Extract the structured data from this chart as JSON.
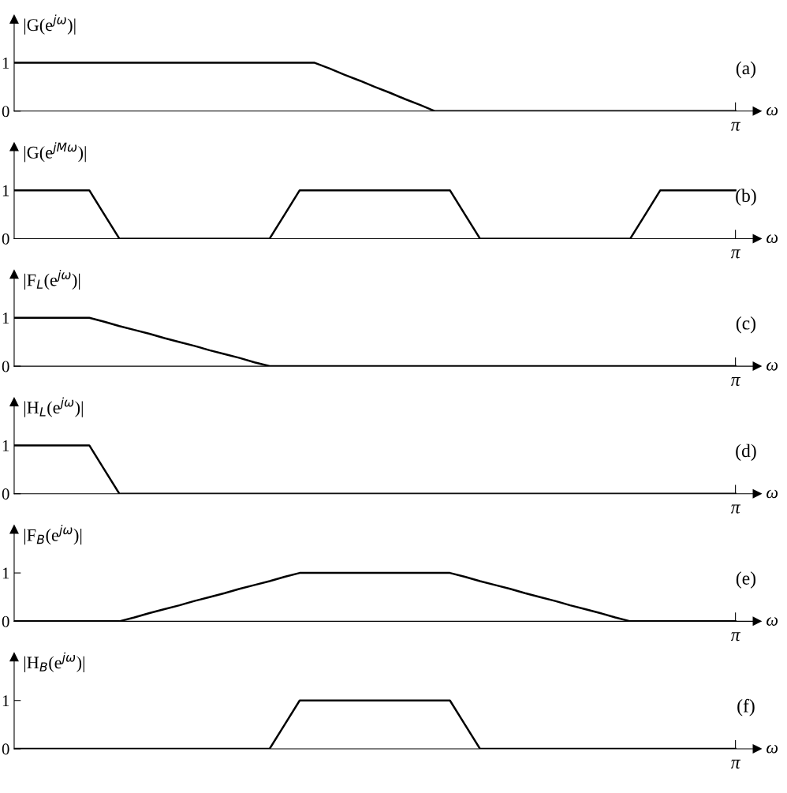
{
  "chart_data": [
    {
      "type": "line",
      "ylabel": "|G(e$^{jω}$)|",
      "xlabel": "ω",
      "annotations": [
        "(a)"
      ],
      "ylim": [
        0,
        1.9
      ],
      "yticks": [
        0,
        1
      ],
      "grid": false,
      "legend": false,
      "marker": "none",
      "line_style": "solid",
      "categories": [
        null,
        null,
        null,
        null,
        null,
        null,
        null,
        null,
        null,
        null,
        null,
        null,
        null,
        null,
        null,
        null,
        null,
        null,
        null,
        null,
        null,
        null,
        null,
        null,
        null,
        null,
        null,
        null,
        null,
        null,
        null,
        null,
        null,
        null,
        null,
        null,
        null,
        null,
        null,
        null,
        null,
        null,
        null,
        null,
        null,
        null,
        null,
        null,
        "π"
      ],
      "series": [
        {
          "color": "#000000",
          "values": [
            1,
            1,
            1,
            1,
            1,
            1,
            1,
            1,
            1,
            1,
            1,
            1,
            1,
            1,
            1,
            1,
            1,
            1,
            1,
            1,
            1,
            0.88,
            0.75,
            0.63,
            0.5,
            0.38,
            0.25,
            0.13,
            0,
            0,
            0,
            0,
            0,
            0,
            0,
            0,
            0,
            0,
            0,
            0,
            0,
            0,
            0,
            0,
            0,
            0,
            0,
            0,
            0
          ]
        }
      ]
    },
    {
      "type": "line",
      "ylabel": "|G(e$^{jMω}$)|",
      "xlabel": "ω",
      "annotations": [
        "(b)"
      ],
      "ylim": [
        0,
        1.9
      ],
      "yticks": [
        0,
        1
      ],
      "grid": false,
      "legend": false,
      "marker": "none",
      "line_style": "solid",
      "categories": [
        null,
        null,
        null,
        null,
        null,
        null,
        null,
        null,
        null,
        null,
        null,
        null,
        null,
        null,
        null,
        null,
        null,
        null,
        null,
        null,
        null,
        null,
        null,
        null,
        null,
        null,
        null,
        null,
        null,
        null,
        null,
        null,
        null,
        null,
        null,
        null,
        null,
        null,
        null,
        null,
        null,
        null,
        null,
        null,
        null,
        null,
        null,
        null,
        "π"
      ],
      "series": [
        {
          "color": "#000000",
          "values": [
            1,
            1,
            1,
            1,
            1,
            1,
            0.5,
            0,
            0,
            0,
            0,
            0,
            0,
            0,
            0,
            0,
            0,
            0,
            0.5,
            1,
            1,
            1,
            1,
            1,
            1,
            1,
            1,
            1,
            1,
            1,
            0.5,
            0,
            0,
            0,
            0,
            0,
            0,
            0,
            0,
            0,
            0,
            0,
            0.5,
            1,
            1,
            1,
            1,
            1,
            1
          ]
        }
      ]
    },
    {
      "type": "line",
      "ylabel": "|F$_{L}$(e$^{jω}$)|",
      "xlabel": "ω",
      "annotations": [
        "(c)"
      ],
      "ylim": [
        0,
        1.9
      ],
      "yticks": [
        0,
        1
      ],
      "grid": false,
      "legend": false,
      "marker": "none",
      "line_style": "solid",
      "categories": [
        null,
        null,
        null,
        null,
        null,
        null,
        null,
        null,
        null,
        null,
        null,
        null,
        null,
        null,
        null,
        null,
        null,
        null,
        null,
        null,
        null,
        null,
        null,
        null,
        null,
        null,
        null,
        null,
        null,
        null,
        null,
        null,
        null,
        null,
        null,
        null,
        null,
        null,
        null,
        null,
        null,
        null,
        null,
        null,
        null,
        null,
        null,
        null,
        "π"
      ],
      "series": [
        {
          "color": "#000000",
          "values": [
            1,
            1,
            1,
            1,
            1,
            1,
            0.92,
            0.83,
            0.75,
            0.67,
            0.58,
            0.5,
            0.42,
            0.33,
            0.25,
            0.17,
            0.08,
            0,
            0,
            0,
            0,
            0,
            0,
            0,
            0,
            0,
            0,
            0,
            0,
            0,
            0,
            0,
            0,
            0,
            0,
            0,
            0,
            0,
            0,
            0,
            0,
            0,
            0,
            0,
            0,
            0,
            0,
            0,
            0
          ]
        }
      ]
    },
    {
      "type": "line",
      "ylabel": "|H$_{L}$(e$^{jω}$)|",
      "xlabel": "ω",
      "annotations": [
        "(d)"
      ],
      "ylim": [
        0,
        1.9
      ],
      "yticks": [
        0,
        1
      ],
      "grid": false,
      "legend": false,
      "marker": "none",
      "line_style": "solid",
      "categories": [
        null,
        null,
        null,
        null,
        null,
        null,
        null,
        null,
        null,
        null,
        null,
        null,
        null,
        null,
        null,
        null,
        null,
        null,
        null,
        null,
        null,
        null,
        null,
        null,
        null,
        null,
        null,
        null,
        null,
        null,
        null,
        null,
        null,
        null,
        null,
        null,
        null,
        null,
        null,
        null,
        null,
        null,
        null,
        null,
        null,
        null,
        null,
        null,
        "π"
      ],
      "series": [
        {
          "color": "#000000",
          "values": [
            1,
            1,
            1,
            1,
            1,
            1,
            0.5,
            0,
            0,
            0,
            0,
            0,
            0,
            0,
            0,
            0,
            0,
            0,
            0,
            0,
            0,
            0,
            0,
            0,
            0,
            0,
            0,
            0,
            0,
            0,
            0,
            0,
            0,
            0,
            0,
            0,
            0,
            0,
            0,
            0,
            0,
            0,
            0,
            0,
            0,
            0,
            0,
            0,
            0
          ]
        }
      ]
    },
    {
      "type": "line",
      "ylabel": "|F$_{B}$(e$^{jω}$)|",
      "xlabel": "ω",
      "annotations": [
        "(e)"
      ],
      "ylim": [
        0,
        1.9
      ],
      "yticks": [
        0,
        1
      ],
      "grid": false,
      "legend": false,
      "marker": "none",
      "line_style": "solid",
      "categories": [
        null,
        null,
        null,
        null,
        null,
        null,
        null,
        null,
        null,
        null,
        null,
        null,
        null,
        null,
        null,
        null,
        null,
        null,
        null,
        null,
        null,
        null,
        null,
        null,
        null,
        null,
        null,
        null,
        null,
        null,
        null,
        null,
        null,
        null,
        null,
        null,
        null,
        null,
        null,
        null,
        null,
        null,
        null,
        null,
        null,
        null,
        null,
        null,
        "π"
      ],
      "series": [
        {
          "color": "#000000",
          "values": [
            0,
            0,
            0,
            0,
            0,
            0,
            0,
            0,
            0.08,
            0.17,
            0.25,
            0.33,
            0.42,
            0.5,
            0.58,
            0.67,
            0.75,
            0.83,
            0.92,
            1,
            1,
            1,
            1,
            1,
            1,
            1,
            1,
            1,
            1,
            1,
            0.92,
            0.83,
            0.75,
            0.67,
            0.58,
            0.5,
            0.42,
            0.33,
            0.25,
            0.17,
            0.08,
            0,
            0,
            0,
            0,
            0,
            0,
            0,
            0
          ]
        }
      ]
    },
    {
      "type": "line",
      "ylabel": "|H$_{B}$(e$^{jω}$)|",
      "xlabel": "ω",
      "annotations": [
        "(f)"
      ],
      "ylim": [
        0,
        1.9
      ],
      "yticks": [
        0,
        1
      ],
      "grid": false,
      "legend": false,
      "marker": "none",
      "line_style": "solid",
      "categories": [
        null,
        null,
        null,
        null,
        null,
        null,
        null,
        null,
        null,
        null,
        null,
        null,
        null,
        null,
        null,
        null,
        null,
        null,
        null,
        null,
        null,
        null,
        null,
        null,
        null,
        null,
        null,
        null,
        null,
        null,
        null,
        null,
        null,
        null,
        null,
        null,
        null,
        null,
        null,
        null,
        null,
        null,
        null,
        null,
        null,
        null,
        null,
        null,
        "π"
      ],
      "series": [
        {
          "color": "#000000",
          "values": [
            0,
            0,
            0,
            0,
            0,
            0,
            0,
            0,
            0,
            0,
            0,
            0,
            0,
            0,
            0,
            0,
            0,
            0,
            0.5,
            1,
            1,
            1,
            1,
            1,
            1,
            1,
            1,
            1,
            1,
            1,
            0.5,
            0,
            0,
            0,
            0,
            0,
            0,
            0,
            0,
            0,
            0,
            0,
            0,
            0,
            0,
            0,
            0,
            0,
            0
          ]
        }
      ]
    }
  ]
}
